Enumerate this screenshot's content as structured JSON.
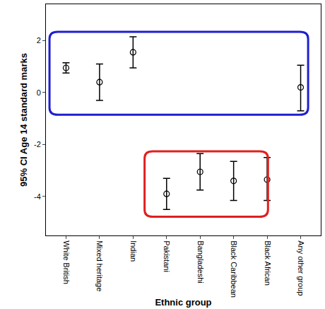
{
  "chart_data": {
    "type": "scatter",
    "x_label": "Ethnic group",
    "y_label": "95% CI Age 14 standard marks",
    "categories": [
      "White British",
      "Mixed heritage",
      "Indian",
      "Pakistani",
      "Bangladeshi",
      "Black Caribbean",
      "Black African",
      "Any other group"
    ],
    "values": [
      0.95,
      0.4,
      1.55,
      -3.9,
      -3.05,
      -3.4,
      -3.35,
      0.2
    ],
    "ci_low": [
      0.75,
      -0.3,
      0.95,
      -4.5,
      -3.75,
      -4.15,
      -4.15,
      -0.7
    ],
    "ci_high": [
      1.15,
      1.1,
      2.15,
      -3.3,
      -2.35,
      -2.65,
      -2.5,
      1.05
    ],
    "color": "#000000",
    "marker": "circle-open",
    "ylim": [
      -5.5,
      3.4
    ],
    "yticks": [
      -4,
      -2,
      0,
      2
    ],
    "grid": false
  }
}
